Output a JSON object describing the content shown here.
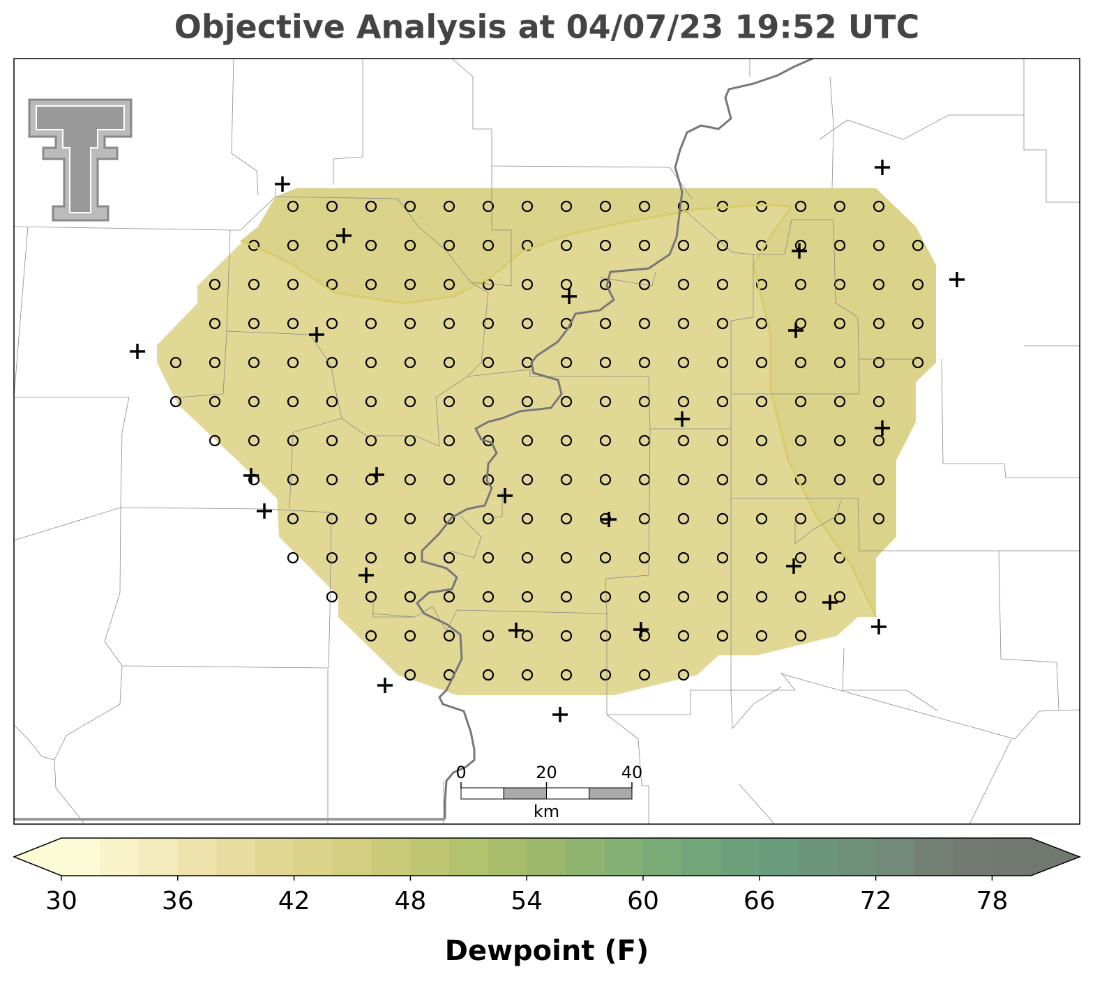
{
  "title": "Objective Analysis at 04/07/23 19:52 UTC",
  "colorbar": {
    "label": "Dewpoint (F)",
    "lim": [
      30,
      80
    ],
    "ticks": [
      30,
      36,
      42,
      48,
      54,
      60,
      66,
      72,
      78
    ],
    "colors": [
      "#fdfad6",
      "#f8f3c8",
      "#f3ebbb",
      "#eee3ad",
      "#e8dca0",
      "#e2d694",
      "#dbd38a",
      "#d3ce80",
      "#cacb78",
      "#bfc671",
      "#b3c26c",
      "#a7bd6b",
      "#9bb86c",
      "#8fb46f",
      "#84b073",
      "#7aab77",
      "#72a67a",
      "#6ca17c",
      "#699c7d",
      "#6c967c",
      "#6f907b",
      "#728a79",
      "#747f74",
      "#737a72",
      "#71786f"
    ]
  },
  "scale_bar": {
    "ticks": [
      0,
      20,
      40
    ],
    "unit": "km"
  }
}
